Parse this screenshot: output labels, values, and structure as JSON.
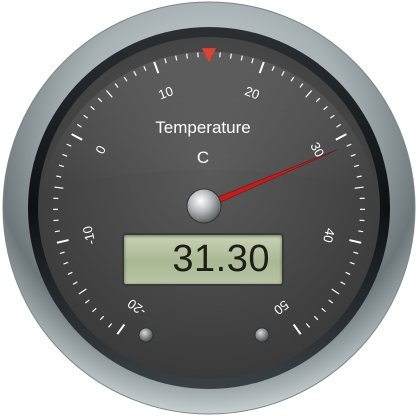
{
  "gauge": {
    "title": "Temperature",
    "unit": "C",
    "display_value": "31.30",
    "value": 31.3,
    "range": [
      -20,
      50
    ],
    "major_tick_labels": [
      "-20",
      "-10",
      "0",
      "10",
      "20",
      "30",
      "40",
      "50"
    ],
    "marker_value": 15,
    "colors": {
      "dial_face": "#4a4a4a",
      "needle": "#cc1a1a",
      "marker": "#e0432a",
      "lcd": "#b3c09e",
      "bezel": "#9aa3a6"
    }
  }
}
